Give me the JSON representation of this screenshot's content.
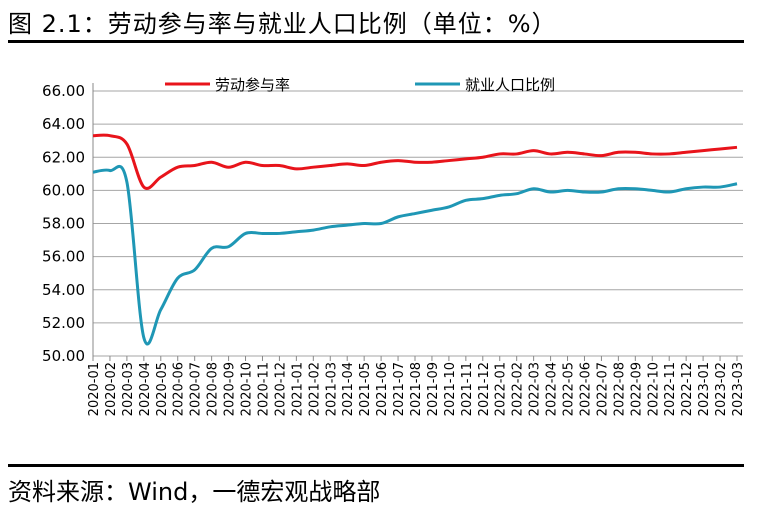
{
  "title": "图 2.1：劳动参与率与就业人口比例（单位：%）",
  "source": "资料来源：Wind，一德宏观战略部",
  "chart_data": {
    "type": "line",
    "title": "",
    "xlabel": "",
    "ylabel": "",
    "ylim": [
      50,
      66
    ],
    "yticks": [
      "50.00",
      "52.00",
      "54.00",
      "56.00",
      "58.00",
      "60.00",
      "62.00",
      "64.00",
      "66.00"
    ],
    "grid": true,
    "legend_placement": "top",
    "categories": [
      "2020-01",
      "2020-02",
      "2020-03",
      "2020-04",
      "2020-05",
      "2020-06",
      "2020-07",
      "2020-08",
      "2020-09",
      "2020-10",
      "2020-11",
      "2020-12",
      "2021-01",
      "2021-02",
      "2021-03",
      "2021-04",
      "2021-05",
      "2021-06",
      "2021-07",
      "2021-08",
      "2021-09",
      "2021-10",
      "2021-11",
      "2021-12",
      "2022-01",
      "2022-02",
      "2022-03",
      "2022-04",
      "2022-05",
      "2022-06",
      "2022-07",
      "2022-08",
      "2022-09",
      "2022-10",
      "2022-11",
      "2022-12",
      "2023-01",
      "2023-02",
      "2023-03"
    ],
    "series": [
      {
        "name": "劳动参与率",
        "color": "#e8141b",
        "values": [
          63.3,
          63.3,
          62.8,
          60.2,
          60.8,
          61.4,
          61.5,
          61.7,
          61.4,
          61.7,
          61.5,
          61.5,
          61.3,
          61.4,
          61.5,
          61.6,
          61.5,
          61.7,
          61.8,
          61.7,
          61.7,
          61.8,
          61.9,
          62.0,
          62.2,
          62.2,
          62.4,
          62.2,
          62.3,
          62.2,
          62.1,
          62.3,
          62.3,
          62.2,
          62.2,
          62.3,
          62.4,
          62.5,
          62.6
        ]
      },
      {
        "name": "就业人口比例",
        "color": "#1f97b5",
        "values": [
          61.1,
          61.2,
          60.5,
          51.1,
          52.8,
          54.7,
          55.2,
          56.5,
          56.6,
          57.4,
          57.4,
          57.4,
          57.5,
          57.6,
          57.8,
          57.9,
          58.0,
          58.0,
          58.4,
          58.6,
          58.8,
          59.0,
          59.4,
          59.5,
          59.7,
          59.8,
          60.1,
          59.9,
          60.0,
          59.9,
          59.9,
          60.1,
          60.1,
          60.0,
          59.9,
          60.1,
          60.2,
          60.2,
          60.4
        ]
      }
    ]
  }
}
